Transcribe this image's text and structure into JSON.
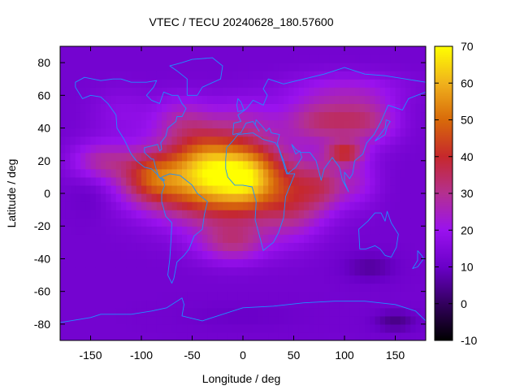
{
  "chart_data": {
    "type": "heatmap",
    "title": "VTEC / TECU 20240628_180.57600",
    "xlabel": "Longitude / deg",
    "ylabel": "Latitude / deg",
    "xlim": [
      -180,
      180
    ],
    "ylim": [
      -90,
      90
    ],
    "x_ticks": [
      -150,
      -100,
      -50,
      0,
      50,
      100,
      150
    ],
    "y_ticks": [
      -80,
      -60,
      -40,
      -20,
      0,
      20,
      40,
      60,
      80
    ],
    "colorbar": {
      "range": [
        -10,
        70
      ],
      "ticks": [
        -10,
        0,
        10,
        20,
        30,
        40,
        50,
        60,
        70
      ],
      "palette": [
        "#000000",
        "#33005e",
        "#6a00c8",
        "#9a12ee",
        "#b43090",
        "#c6282c",
        "#d86a0a",
        "#f0b21c",
        "#ffff00"
      ]
    },
    "grid": false,
    "legend": "colorbar-right",
    "background_level": 12,
    "features": [
      {
        "lon": -20,
        "lat": 8,
        "peak": 50,
        "wlon": 70,
        "wlat": 24
      },
      {
        "lon": -35,
        "lat": 22,
        "peak": 14,
        "wlon": 30,
        "wlat": 18
      },
      {
        "lon": 5,
        "lat": 12,
        "peak": 14,
        "wlon": 25,
        "wlat": 18
      },
      {
        "lon": -90,
        "lat": 10,
        "peak": 20,
        "wlon": 30,
        "wlat": 15
      },
      {
        "lon": -140,
        "lat": 20,
        "peak": 14,
        "wlon": 30,
        "wlat": 12
      },
      {
        "lon": -60,
        "lat": 45,
        "peak": 12,
        "wlon": 30,
        "wlat": 15
      },
      {
        "lon": 0,
        "lat": 45,
        "peak": 9,
        "wlon": 35,
        "wlat": 15
      },
      {
        "lon": -10,
        "lat": -30,
        "peak": 16,
        "wlon": 35,
        "wlat": 12
      },
      {
        "lon": 50,
        "lat": -10,
        "peak": 12,
        "wlon": 30,
        "wlat": 20
      },
      {
        "lon": 80,
        "lat": 5,
        "peak": 14,
        "wlon": 25,
        "wlat": 15
      },
      {
        "lon": 80,
        "lat": 45,
        "peak": 20,
        "wlon": 40,
        "wlat": 14
      },
      {
        "lon": 100,
        "lat": 25,
        "peak": 22,
        "wlon": 18,
        "wlat": 7
      },
      {
        "lon": 125,
        "lat": 45,
        "peak": 14,
        "wlon": 30,
        "wlat": 15
      },
      {
        "lon": 100,
        "lat": 65,
        "peak": 8,
        "wlon": 60,
        "wlat": 10
      },
      {
        "lon": 115,
        "lat": 8,
        "peak": 8,
        "wlon": 20,
        "wlat": 15
      },
      {
        "lon": -120,
        "lat": 50,
        "peak": 5,
        "wlon": 30,
        "wlat": 15
      },
      {
        "lon": 125,
        "lat": -45,
        "peak": -6,
        "wlon": 25,
        "wlat": 8
      },
      {
        "lon": 150,
        "lat": -78,
        "peak": -8,
        "wlon": 20,
        "wlat": 6
      },
      {
        "lon": -150,
        "lat": 0,
        "peak": -3,
        "wlon": 20,
        "wlat": 15
      },
      {
        "lon": 0,
        "lat": -75,
        "peak": -2,
        "wlon": 60,
        "wlat": 8
      }
    ],
    "coastlines": {
      "north_america": [
        [
          -165,
          65
        ],
        [
          -158,
          58
        ],
        [
          -150,
          60
        ],
        [
          -140,
          59
        ],
        [
          -133,
          55
        ],
        [
          -125,
          48
        ],
        [
          -124,
          40
        ],
        [
          -117,
          33
        ],
        [
          -110,
          24
        ],
        [
          -105,
          20
        ],
        [
          -97,
          16
        ],
        [
          -90,
          15
        ],
        [
          -85,
          12
        ],
        [
          -80,
          8
        ],
        [
          -77,
          8
        ],
        [
          -79,
          9
        ],
        [
          -83,
          10
        ],
        [
          -86,
          16
        ],
        [
          -88,
          21
        ],
        [
          -90,
          21
        ],
        [
          -97,
          25
        ],
        [
          -97,
          28
        ],
        [
          -90,
          29
        ],
        [
          -84,
          30
        ],
        [
          -82,
          26
        ],
        [
          -80,
          27
        ],
        [
          -81,
          31
        ],
        [
          -76,
          35
        ],
        [
          -74,
          40
        ],
        [
          -70,
          42
        ],
        [
          -66,
          44
        ],
        [
          -65,
          47
        ],
        [
          -60,
          47
        ],
        [
          -56,
          52
        ],
        [
          -60,
          55
        ],
        [
          -64,
          60
        ],
        [
          -70,
          60
        ],
        [
          -78,
          62
        ],
        [
          -82,
          55
        ],
        [
          -90,
          57
        ],
        [
          -95,
          60
        ],
        [
          -88,
          65
        ],
        [
          -85,
          69
        ],
        [
          -95,
          68
        ],
        [
          -110,
          68
        ],
        [
          -120,
          70
        ],
        [
          -128,
          70
        ],
        [
          -140,
          69
        ],
        [
          -156,
          71
        ],
        [
          -165,
          68
        ],
        [
          -165,
          65
        ]
      ],
      "greenland": [
        [
          -55,
          60
        ],
        [
          -45,
          60
        ],
        [
          -40,
          65
        ],
        [
          -22,
          70
        ],
        [
          -20,
          78
        ],
        [
          -30,
          83
        ],
        [
          -50,
          82
        ],
        [
          -60,
          80
        ],
        [
          -72,
          78
        ],
        [
          -65,
          75
        ],
        [
          -55,
          70
        ],
        [
          -55,
          60
        ]
      ],
      "south_america": [
        [
          -80,
          10
        ],
        [
          -72,
          12
        ],
        [
          -62,
          11
        ],
        [
          -50,
          5
        ],
        [
          -45,
          0
        ],
        [
          -35,
          -5
        ],
        [
          -38,
          -13
        ],
        [
          -40,
          -22
        ],
        [
          -48,
          -26
        ],
        [
          -53,
          -34
        ],
        [
          -58,
          -38
        ],
        [
          -65,
          -42
        ],
        [
          -68,
          -52
        ],
        [
          -70,
          -55
        ],
        [
          -74,
          -50
        ],
        [
          -72,
          -40
        ],
        [
          -71,
          -30
        ],
        [
          -70,
          -18
        ],
        [
          -76,
          -14
        ],
        [
          -80,
          -5
        ],
        [
          -80,
          0
        ],
        [
          -77,
          5
        ],
        [
          -80,
          10
        ]
      ],
      "africa": [
        [
          -17,
          21
        ],
        [
          -16,
          28
        ],
        [
          -10,
          32
        ],
        [
          -5,
          36
        ],
        [
          10,
          37
        ],
        [
          20,
          33
        ],
        [
          32,
          31
        ],
        [
          35,
          28
        ],
        [
          43,
          12
        ],
        [
          51,
          12
        ],
        [
          42,
          -2
        ],
        [
          40,
          -15
        ],
        [
          35,
          -24
        ],
        [
          30,
          -30
        ],
        [
          20,
          -35
        ],
        [
          18,
          -30
        ],
        [
          12,
          -16
        ],
        [
          13,
          -5
        ],
        [
          9,
          4
        ],
        [
          0,
          5
        ],
        [
          -8,
          5
        ],
        [
          -15,
          10
        ],
        [
          -17,
          15
        ],
        [
          -17,
          21
        ]
      ],
      "eurasia": [
        [
          -10,
          36
        ],
        [
          -9,
          43
        ],
        [
          -2,
          44
        ],
        [
          -5,
          48
        ],
        [
          2,
          51
        ],
        [
          5,
          53
        ],
        [
          10,
          57
        ],
        [
          20,
          54
        ],
        [
          24,
          60
        ],
        [
          20,
          64
        ],
        [
          25,
          70
        ],
        [
          40,
          67
        ],
        [
          60,
          70
        ],
        [
          80,
          73
        ],
        [
          100,
          77
        ],
        [
          120,
          73
        ],
        [
          140,
          72
        ],
        [
          160,
          70
        ],
        [
          180,
          68
        ],
        [
          180,
          62
        ],
        [
          163,
          58
        ],
        [
          157,
          51
        ],
        [
          143,
          54
        ],
        [
          136,
          44
        ],
        [
          129,
          36
        ],
        [
          122,
          31
        ],
        [
          118,
          24
        ],
        [
          110,
          20
        ],
        [
          108,
          12
        ],
        [
          105,
          9
        ],
        [
          100,
          13
        ],
        [
          100,
          7
        ],
        [
          104,
          1
        ],
        [
          98,
          8
        ],
        [
          95,
          16
        ],
        [
          88,
          22
        ],
        [
          80,
          15
        ],
        [
          77,
          8
        ],
        [
          72,
          20
        ],
        [
          66,
          25
        ],
        [
          57,
          25
        ],
        [
          52,
          27
        ],
        [
          48,
          30
        ],
        [
          52,
          24
        ],
        [
          56,
          26
        ],
        [
          58,
          22
        ],
        [
          52,
          16
        ],
        [
          44,
          12
        ],
        [
          40,
          20
        ],
        [
          35,
          28
        ],
        [
          34,
          31
        ],
        [
          36,
          36
        ],
        [
          28,
          37
        ],
        [
          26,
          40
        ],
        [
          23,
          38
        ],
        [
          19,
          41
        ],
        [
          13,
          45
        ],
        [
          12,
          42
        ],
        [
          16,
          38
        ],
        [
          10,
          44
        ],
        [
          3,
          43
        ],
        [
          -2,
          37
        ],
        [
          -10,
          36
        ]
      ],
      "britain": [
        [
          -5,
          50
        ],
        [
          1,
          51
        ],
        [
          -2,
          56
        ],
        [
          -5,
          58
        ],
        [
          -6,
          54
        ],
        [
          -5,
          50
        ]
      ],
      "japan": [
        [
          130,
          32
        ],
        [
          135,
          34
        ],
        [
          140,
          36
        ],
        [
          142,
          41
        ],
        [
          145,
          44
        ],
        [
          141,
          45
        ],
        [
          140,
          40
        ],
        [
          135,
          36
        ],
        [
          130,
          32
        ]
      ],
      "australia": [
        [
          114,
          -22
        ],
        [
          123,
          -17
        ],
        [
          130,
          -12
        ],
        [
          136,
          -12
        ],
        [
          140,
          -17
        ],
        [
          142,
          -11
        ],
        [
          146,
          -18
        ],
        [
          153,
          -25
        ],
        [
          151,
          -33
        ],
        [
          146,
          -39
        ],
        [
          140,
          -38
        ],
        [
          135,
          -34
        ],
        [
          130,
          -32
        ],
        [
          121,
          -34
        ],
        [
          115,
          -34
        ],
        [
          114,
          -22
        ]
      ],
      "new_zealand": [
        [
          172,
          -35
        ],
        [
          176,
          -38
        ],
        [
          178,
          -40
        ],
        [
          172,
          -45
        ],
        [
          167,
          -46
        ],
        [
          172,
          -41
        ],
        [
          172,
          -35
        ]
      ],
      "antarctica": [
        [
          -180,
          -79
        ],
        [
          -150,
          -76
        ],
        [
          -140,
          -74
        ],
        [
          -110,
          -74
        ],
        [
          -90,
          -72
        ],
        [
          -75,
          -70
        ],
        [
          -60,
          -64
        ],
        [
          -58,
          -68
        ],
        [
          -60,
          -75
        ],
        [
          -40,
          -78
        ],
        [
          -20,
          -74
        ],
        [
          0,
          -70
        ],
        [
          30,
          -69
        ],
        [
          60,
          -67
        ],
        [
          90,
          -66
        ],
        [
          120,
          -66
        ],
        [
          150,
          -68
        ],
        [
          170,
          -72
        ],
        [
          180,
          -78
        ]
      ]
    }
  }
}
